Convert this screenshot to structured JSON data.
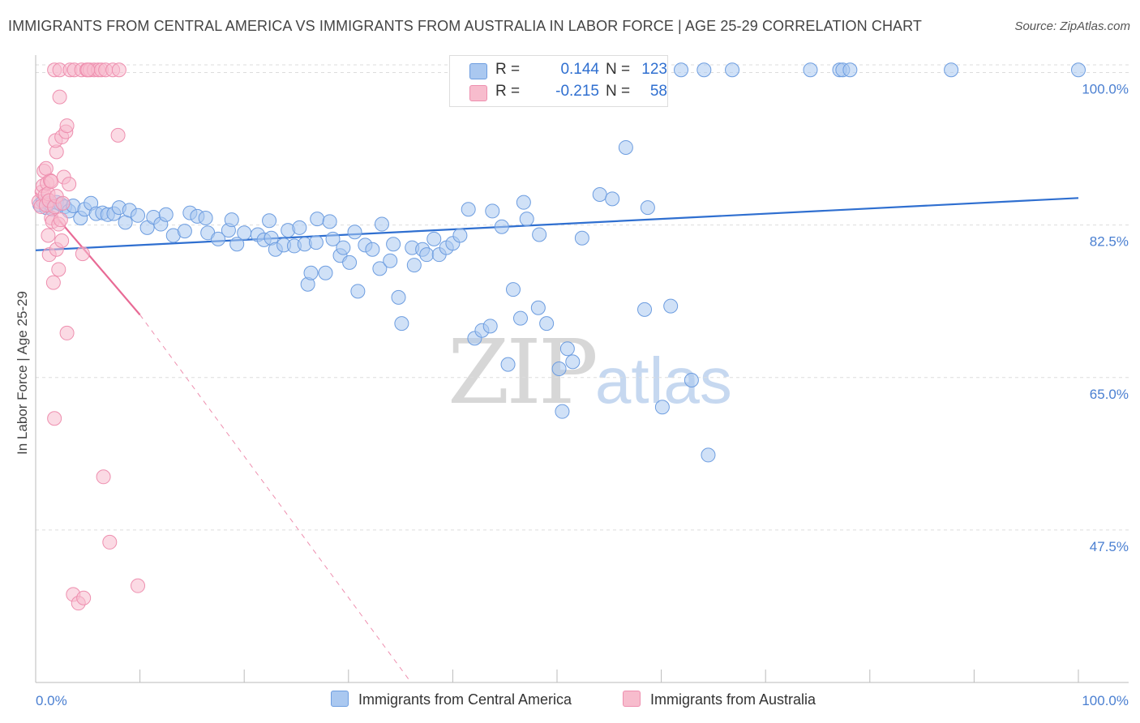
{
  "title": "IMMIGRANTS FROM CENTRAL AMERICA VS IMMIGRANTS FROM AUSTRALIA IN LABOR FORCE | AGE 25-29 CORRELATION CHART",
  "source": "Source: ZipAtlas.com",
  "watermark": {
    "zip": "ZIP",
    "atlas": "atlas"
  },
  "legend": {
    "rows": [
      {
        "r_label": "R =",
        "r_value": "0.144",
        "n_label": "N =",
        "n_value": "123"
      },
      {
        "r_label": "R =",
        "r_value": "-0.215",
        "n_label": "N =",
        "n_value": "58"
      }
    ]
  },
  "colors": {
    "blue_fill": "#aac8f0",
    "blue_stroke": "#6d9de0",
    "blue_line": "#2f6fd0",
    "pink_fill": "#f7bccd",
    "pink_stroke": "#ee8faf",
    "pink_line": "#e86a95",
    "tick_text": "#4a7fd1",
    "grid": "#dddddd"
  },
  "chart_data": {
    "type": "scatter",
    "title": "IMMIGRANTS FROM CENTRAL AMERICA VS IMMIGRANTS FROM AUSTRALIA IN LABOR FORCE | AGE 25-29 CORRELATION CHART",
    "xlabel": "",
    "ylabel": "In Labor Force | Age 25-29",
    "xlim": [
      0,
      100
    ],
    "ylim": [
      30,
      102
    ],
    "x_tick_labels": [
      "0.0%",
      "100.0%"
    ],
    "y_ticks": [
      47.5,
      65.0,
      82.5,
      100.0
    ],
    "y_tick_labels": [
      "47.5%",
      "65.0%",
      "82.5%",
      "100.0%"
    ],
    "grid": true,
    "legend_placement": "top-center",
    "series": [
      {
        "name": "Immigrants from Central America",
        "color": "#aac8f0",
        "trend": {
          "x": [
            0,
            100
          ],
          "y": [
            79.6,
            85.6
          ]
        },
        "points": [
          [
            0.4,
            84.8
          ],
          [
            0.7,
            85.2
          ],
          [
            1.0,
            84.5
          ],
          [
            1.3,
            85.0
          ],
          [
            1.6,
            84.3
          ],
          [
            2.0,
            85.1
          ],
          [
            2.4,
            84.9
          ],
          [
            2.8,
            84.6
          ],
          [
            3.2,
            84.1
          ],
          [
            3.6,
            84.7
          ],
          [
            4.3,
            83.3
          ],
          [
            4.7,
            84.3
          ],
          [
            5.3,
            85.0
          ],
          [
            5.8,
            83.8
          ],
          [
            6.4,
            83.9
          ],
          [
            6.9,
            83.7
          ],
          [
            7.5,
            83.8
          ],
          [
            8.0,
            84.5
          ],
          [
            8.6,
            82.8
          ],
          [
            9.0,
            84.2
          ],
          [
            9.8,
            83.6
          ],
          [
            10.7,
            82.2
          ],
          [
            11.3,
            83.4
          ],
          [
            12.0,
            82.6
          ],
          [
            12.5,
            83.7
          ],
          [
            13.2,
            81.3
          ],
          [
            14.3,
            81.8
          ],
          [
            14.8,
            83.9
          ],
          [
            15.5,
            83.5
          ],
          [
            16.3,
            83.3
          ],
          [
            16.5,
            81.6
          ],
          [
            17.5,
            80.9
          ],
          [
            18.5,
            81.9
          ],
          [
            18.8,
            83.1
          ],
          [
            19.3,
            80.3
          ],
          [
            20.0,
            81.6
          ],
          [
            21.3,
            81.4
          ],
          [
            21.9,
            80.8
          ],
          [
            22.4,
            83.0
          ],
          [
            22.6,
            81.0
          ],
          [
            23.0,
            79.7
          ],
          [
            23.8,
            80.2
          ],
          [
            24.2,
            81.9
          ],
          [
            24.8,
            80.1
          ],
          [
            25.3,
            82.2
          ],
          [
            25.8,
            80.3
          ],
          [
            26.1,
            75.7
          ],
          [
            26.4,
            77.0
          ],
          [
            26.9,
            80.5
          ],
          [
            27.0,
            83.2
          ],
          [
            27.8,
            77.0
          ],
          [
            28.2,
            82.9
          ],
          [
            28.5,
            80.9
          ],
          [
            29.2,
            79.0
          ],
          [
            29.5,
            79.9
          ],
          [
            30.1,
            78.2
          ],
          [
            30.6,
            81.7
          ],
          [
            30.9,
            74.9
          ],
          [
            31.6,
            80.2
          ],
          [
            32.3,
            79.7
          ],
          [
            33.0,
            77.5
          ],
          [
            33.2,
            82.6
          ],
          [
            34.0,
            78.4
          ],
          [
            34.3,
            80.3
          ],
          [
            34.8,
            74.2
          ],
          [
            35.1,
            71.2
          ],
          [
            36.1,
            79.9
          ],
          [
            36.3,
            77.9
          ],
          [
            37.1,
            79.7
          ],
          [
            37.5,
            79.1
          ],
          [
            38.2,
            80.9
          ],
          [
            38.7,
            79.1
          ],
          [
            39.4,
            79.9
          ],
          [
            40.0,
            80.4
          ],
          [
            40.7,
            81.3
          ],
          [
            41.5,
            84.3
          ],
          [
            42.1,
            69.5
          ],
          [
            42.8,
            70.4
          ],
          [
            43.6,
            70.9
          ],
          [
            43.8,
            84.1
          ],
          [
            44.7,
            82.3
          ],
          [
            45.3,
            66.5
          ],
          [
            45.8,
            75.1
          ],
          [
            46.5,
            71.8
          ],
          [
            46.8,
            85.1
          ],
          [
            47.1,
            83.2
          ],
          [
            48.2,
            73.0
          ],
          [
            48.3,
            81.4
          ],
          [
            49.0,
            71.2
          ],
          [
            50.2,
            66.0
          ],
          [
            50.5,
            61.1
          ],
          [
            51.0,
            68.3
          ],
          [
            51.5,
            66.8
          ],
          [
            52.4,
            81.0
          ],
          [
            54.1,
            86.0
          ],
          [
            55.3,
            85.5
          ],
          [
            56.6,
            91.4
          ],
          [
            58.4,
            72.8
          ],
          [
            58.7,
            84.5
          ],
          [
            60.1,
            61.6
          ],
          [
            60.9,
            73.2
          ],
          [
            62.9,
            64.7
          ],
          [
            64.5,
            56.1
          ],
          [
            53.5,
            100.3
          ],
          [
            61.9,
            100.3
          ],
          [
            64.1,
            100.3
          ],
          [
            66.8,
            100.3
          ],
          [
            74.3,
            100.3
          ],
          [
            77.1,
            100.3
          ],
          [
            77.4,
            100.3
          ],
          [
            78.1,
            100.3
          ],
          [
            87.8,
            100.3
          ],
          [
            100.0,
            100.3
          ]
        ]
      },
      {
        "name": "Immigrants from Australia",
        "color": "#f7bccd",
        "trend": {
          "x": [
            0,
            10
          ],
          "y": [
            86.2,
            72.2
          ]
        },
        "trend_extension": {
          "x": [
            10,
            36
          ],
          "y": [
            72.2,
            30
          ]
        },
        "points": [
          [
            0.3,
            85.2
          ],
          [
            0.5,
            84.6
          ],
          [
            0.6,
            86.3
          ],
          [
            0.7,
            87.0
          ],
          [
            0.8,
            88.7
          ],
          [
            0.9,
            85.9
          ],
          [
            1.0,
            84.8
          ],
          [
            1.1,
            87.3
          ],
          [
            1.2,
            86.1
          ],
          [
            1.3,
            85.3
          ],
          [
            1.4,
            87.6
          ],
          [
            1.5,
            83.3
          ],
          [
            1.6,
            82.9
          ],
          [
            1.8,
            84.6
          ],
          [
            2.0,
            85.8
          ],
          [
            2.2,
            82.6
          ],
          [
            2.4,
            83.1
          ],
          [
            2.6,
            85.0
          ],
          [
            1.2,
            81.3
          ],
          [
            1.3,
            79.1
          ],
          [
            1.7,
            75.9
          ],
          [
            2.0,
            79.7
          ],
          [
            2.2,
            77.4
          ],
          [
            2.5,
            80.7
          ],
          [
            2.0,
            90.9
          ],
          [
            1.9,
            92.2
          ],
          [
            2.5,
            92.6
          ],
          [
            2.9,
            93.2
          ],
          [
            3.0,
            93.9
          ],
          [
            2.3,
            97.2
          ],
          [
            1.0,
            89.0
          ],
          [
            1.5,
            87.5
          ],
          [
            2.7,
            88.0
          ],
          [
            3.2,
            87.2
          ],
          [
            4.5,
            79.2
          ],
          [
            3.0,
            70.1
          ],
          [
            1.8,
            60.3
          ],
          [
            6.5,
            53.6
          ],
          [
            7.1,
            46.1
          ],
          [
            3.6,
            40.1
          ],
          [
            4.1,
            39.1
          ],
          [
            4.6,
            39.7
          ],
          [
            9.8,
            41.1
          ],
          [
            7.9,
            92.8
          ],
          [
            1.8,
            100.3
          ],
          [
            2.3,
            100.3
          ],
          [
            3.3,
            100.3
          ],
          [
            3.7,
            100.3
          ],
          [
            4.4,
            100.3
          ],
          [
            4.9,
            100.3
          ],
          [
            5.2,
            100.3
          ],
          [
            5.6,
            100.3
          ],
          [
            6.0,
            100.3
          ],
          [
            6.3,
            100.3
          ],
          [
            6.7,
            100.3
          ],
          [
            7.4,
            100.3
          ],
          [
            8.0,
            100.3
          ],
          [
            5.0,
            100.3
          ]
        ]
      }
    ]
  }
}
